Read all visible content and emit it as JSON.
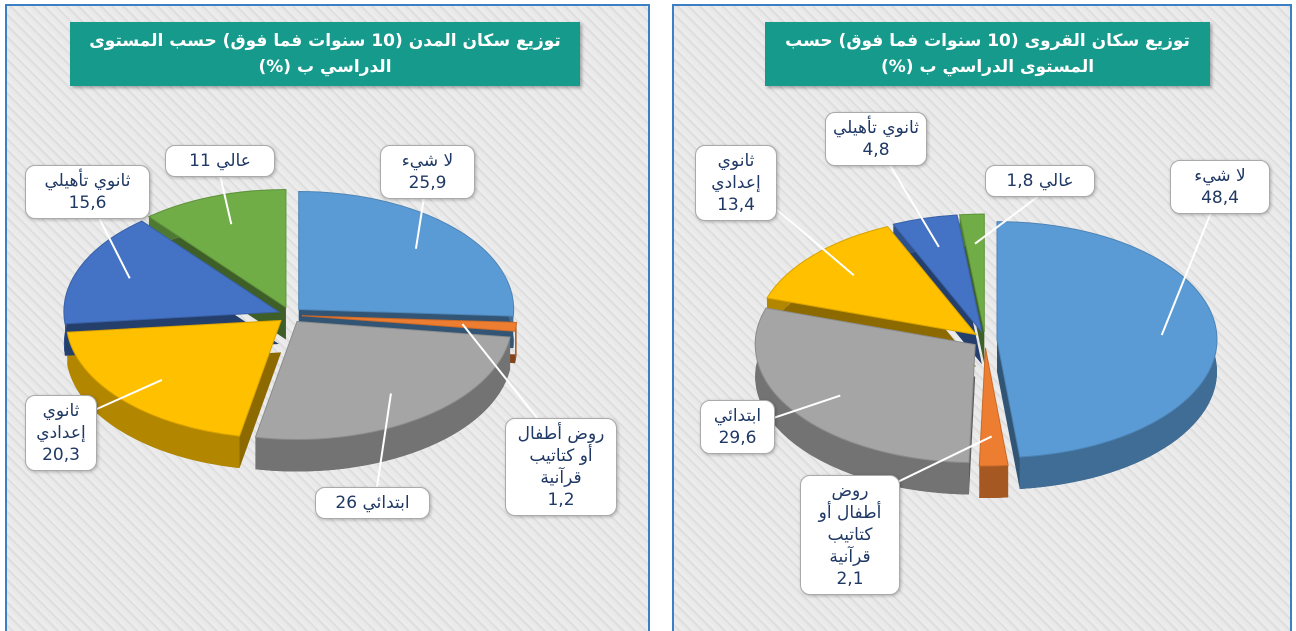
{
  "chart_data": [
    {
      "type": "pie",
      "title": "توزيع سكان المدن (10 سنوات فما فوق) حسب المستوى الدراسي ب (%)",
      "categories": [
        "لا شيء",
        "روض أطفال أو كتاتيب قرآنية",
        "ابتدائي",
        "ثانوي إعدادي",
        "ثانوي تأهيلي",
        "عالي"
      ],
      "values": [
        25.9,
        1.2,
        26,
        20.3,
        15.6,
        11
      ],
      "value_labels": [
        "25,9",
        "1,2",
        "26",
        "20,3",
        "15,6",
        "11"
      ],
      "colors": [
        "#5b9bd5",
        "#ed7d31",
        "#a5a5a5",
        "#ffc000",
        "#4472c4",
        "#70ad47"
      ]
    },
    {
      "type": "pie",
      "title": "توزيع سكان القروى (10 سنوات فما فوق) حسب المستوى الدراسي ب (%)",
      "categories": [
        "لا شيء",
        "روض أطفال أو كتاتيب قرآنية",
        "ابتدائي",
        "ثانوي إعدادي",
        "ثانوي تأهيلي",
        "عالي"
      ],
      "values": [
        48.4,
        2.1,
        29.6,
        13.4,
        4.8,
        1.8
      ],
      "value_labels": [
        "48,4",
        "2,1",
        "29,6",
        "13,4",
        "4,8",
        "1,8"
      ],
      "colors": [
        "#5b9bd5",
        "#ed7d31",
        "#a5a5a5",
        "#ffc000",
        "#4472c4",
        "#70ad47"
      ]
    }
  ]
}
